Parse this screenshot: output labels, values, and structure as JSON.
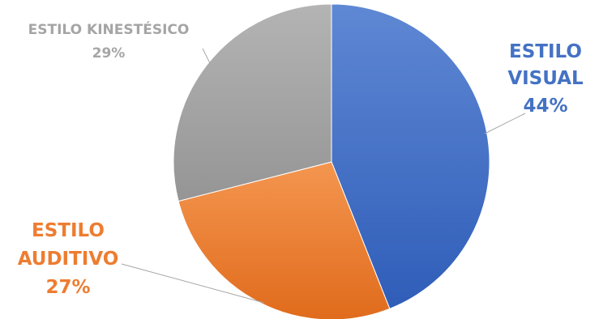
{
  "chart_data": {
    "type": "pie",
    "slices": [
      {
        "label_lines": [
          "ESTILO",
          "VISUAL"
        ],
        "percent_label": "44%",
        "value": 44,
        "color": "#4472C4"
      },
      {
        "label_lines": [
          "ESTILO",
          "AUDITIVO"
        ],
        "percent_label": "27%",
        "value": 27,
        "color": "#ED7D31"
      },
      {
        "label_lines": [
          "ESTILO KINESTÉSICO"
        ],
        "percent_label": "29%",
        "value": 29,
        "color": "#A5A5A5"
      }
    ]
  }
}
